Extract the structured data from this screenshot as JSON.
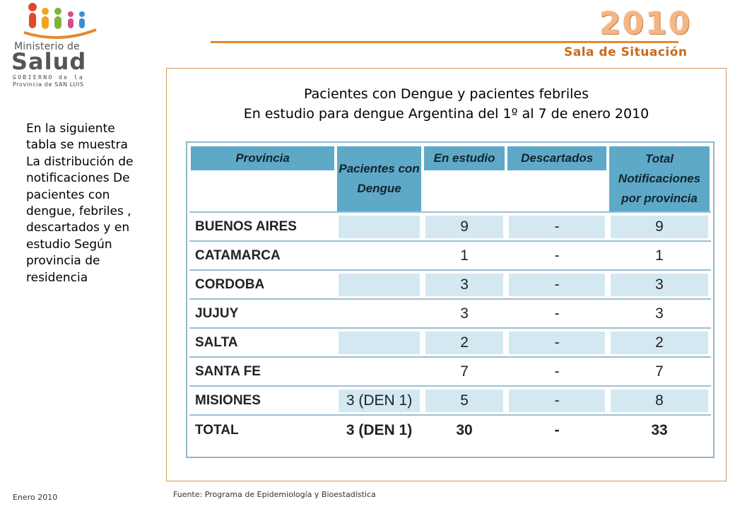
{
  "logo": {
    "ministerio": "Ministerio de",
    "salud": "Salud",
    "gobierno": "GOBIERNO de la",
    "provincia": "Provincia de SAN LUIS"
  },
  "header": {
    "year": "2010",
    "subtitle": "Sala de Situación"
  },
  "side_text": "En la siguiente tabla se muestra La distribución de notificaciones De pacientes con dengue, febriles , descartados y en estudio Según provincia de residencia",
  "title": {
    "line1": "Pacientes con Dengue y pacientes febriles",
    "line2": "En estudio para dengue Argentina del 1º al 7 de enero 2010"
  },
  "table": {
    "headers": [
      "Provincia",
      "Pacientes con Dengue",
      "En estudio",
      "Descartados",
      "Total Notificaciones por provincia"
    ],
    "rows": [
      [
        "BUENOS AIRES",
        "",
        "9",
        "-",
        "9"
      ],
      [
        "CATAMARCA",
        "",
        "1",
        "-",
        "1"
      ],
      [
        "CORDOBA",
        "",
        "3",
        "-",
        "3"
      ],
      [
        "JUJUY",
        "",
        "3",
        "-",
        "3"
      ],
      [
        "SALTA",
        "",
        "2",
        "-",
        "2"
      ],
      [
        "SANTA FE",
        "",
        "7",
        "-",
        "7"
      ],
      [
        "MISIONES",
        "3 (DEN 1)",
        "5",
        "-",
        "8"
      ]
    ],
    "total": [
      "TOTAL",
      "3 (DEN 1)",
      "30",
      "-",
      "33"
    ],
    "header_color": "#5ea9c8",
    "shade_color": "#d4e8f2"
  },
  "footer": {
    "date": "Enero 2010",
    "source": "Fuente: Programa de Epidemiología y Bioestadística"
  },
  "colors": {
    "accent_orange": "#e58a2e",
    "year_color": "#f3b685",
    "frame_border": "#d59a5b"
  }
}
